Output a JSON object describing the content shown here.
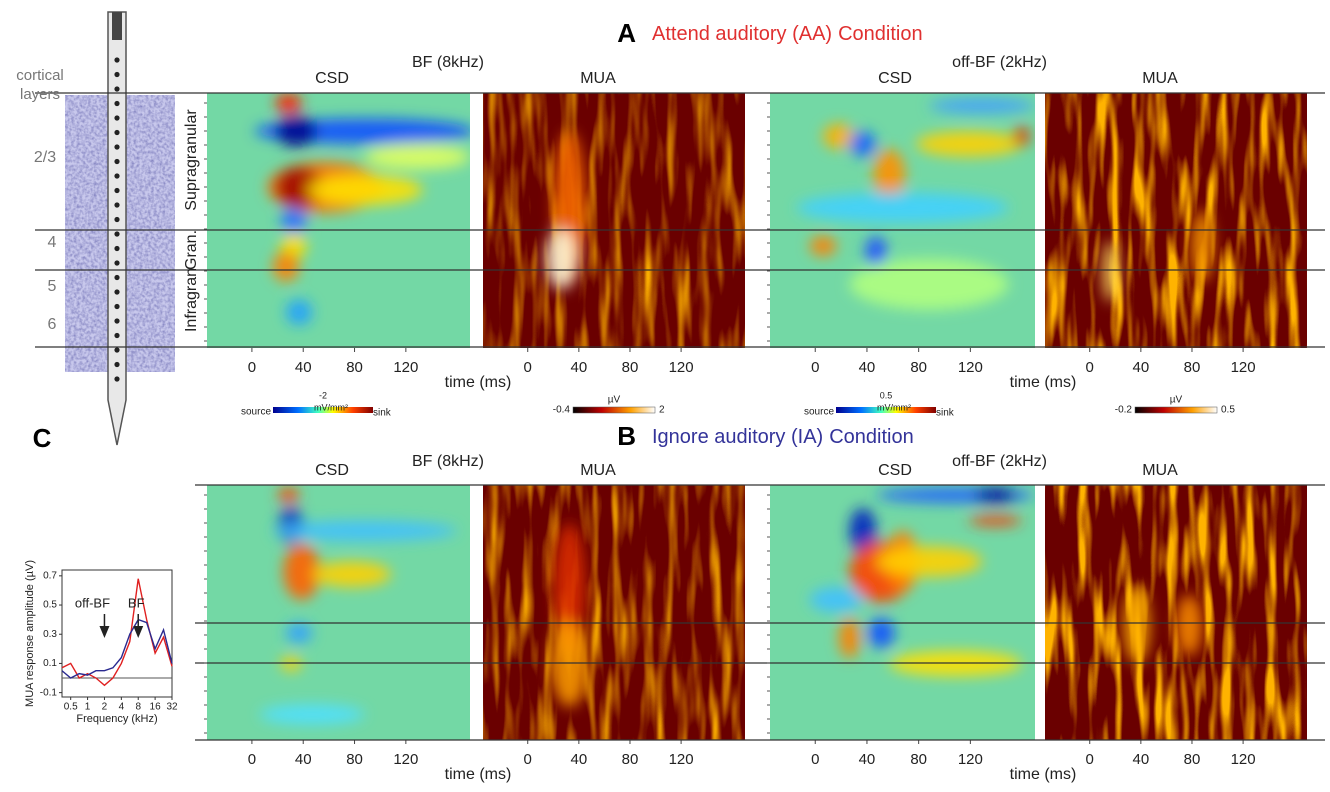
{
  "panel_a": {
    "letter": "A",
    "title": "Attend auditory (AA)",
    "title_suffix": "Condition"
  },
  "panel_b": {
    "letter": "B",
    "title": "Ignore auditory (IA)",
    "title_suffix": "Condition"
  },
  "stimulus_labels": [
    "BF (8kHz)",
    "off-BF (2kHz)"
  ],
  "map_labels": [
    "CSD",
    "MUA"
  ],
  "time_axis": {
    "xlim": [
      -35,
      170
    ],
    "xticks": [
      0,
      40,
      80,
      120
    ],
    "label": "time (ms)"
  },
  "colorbars": [
    {
      "left": "source",
      "value": -2,
      "unit": "mV/mm²",
      "right": "sink"
    },
    {
      "unit": "µV",
      "min": -0.4,
      "max": 2
    },
    {
      "left": "source",
      "value": 0.5,
      "unit": "mV/mm²",
      "right": "sink"
    },
    {
      "unit": "µV",
      "min": -0.2,
      "max": 0.5
    }
  ],
  "layers": {
    "title": "cortical layers",
    "names": [
      "2/3",
      "4",
      "5",
      "6"
    ],
    "regions": [
      "Supragranular",
      "Gran.",
      "Infragran"
    ]
  },
  "chart_data": {
    "type": "line",
    "letter": "C",
    "ylabel": "MUA response amplitude (µV)",
    "xlabel": "Frequency (kHz)",
    "log_x": true,
    "x": [
      0.35,
      0.5,
      0.71,
      1,
      1.41,
      2,
      2.83,
      4,
      5.66,
      8,
      11.3,
      16,
      22.6,
      32
    ],
    "series": [
      {
        "color": "#e02020",
        "values": [
          0.07,
          0.1,
          0.0,
          0.03,
          0.0,
          -0.05,
          0.0,
          0.1,
          0.25,
          0.68,
          0.4,
          0.17,
          0.28,
          0.08
        ]
      },
      {
        "color": "#2a2a90",
        "values": [
          0.05,
          0.0,
          0.03,
          0.02,
          0.05,
          0.05,
          0.07,
          0.14,
          0.3,
          0.4,
          0.38,
          0.2,
          0.33,
          0.1
        ]
      }
    ],
    "xlim": [
      0.35,
      32
    ],
    "xticks": [
      0.5,
      1,
      2,
      4,
      8,
      16,
      32
    ],
    "ylim": [
      -0.13,
      0.74
    ],
    "yticks": [
      -0.1,
      0.1,
      0.3,
      0.5,
      0.7
    ],
    "annotations": [
      {
        "text": "off-BF",
        "x": 2
      },
      {
        "text": "BF",
        "x": 8
      }
    ]
  }
}
